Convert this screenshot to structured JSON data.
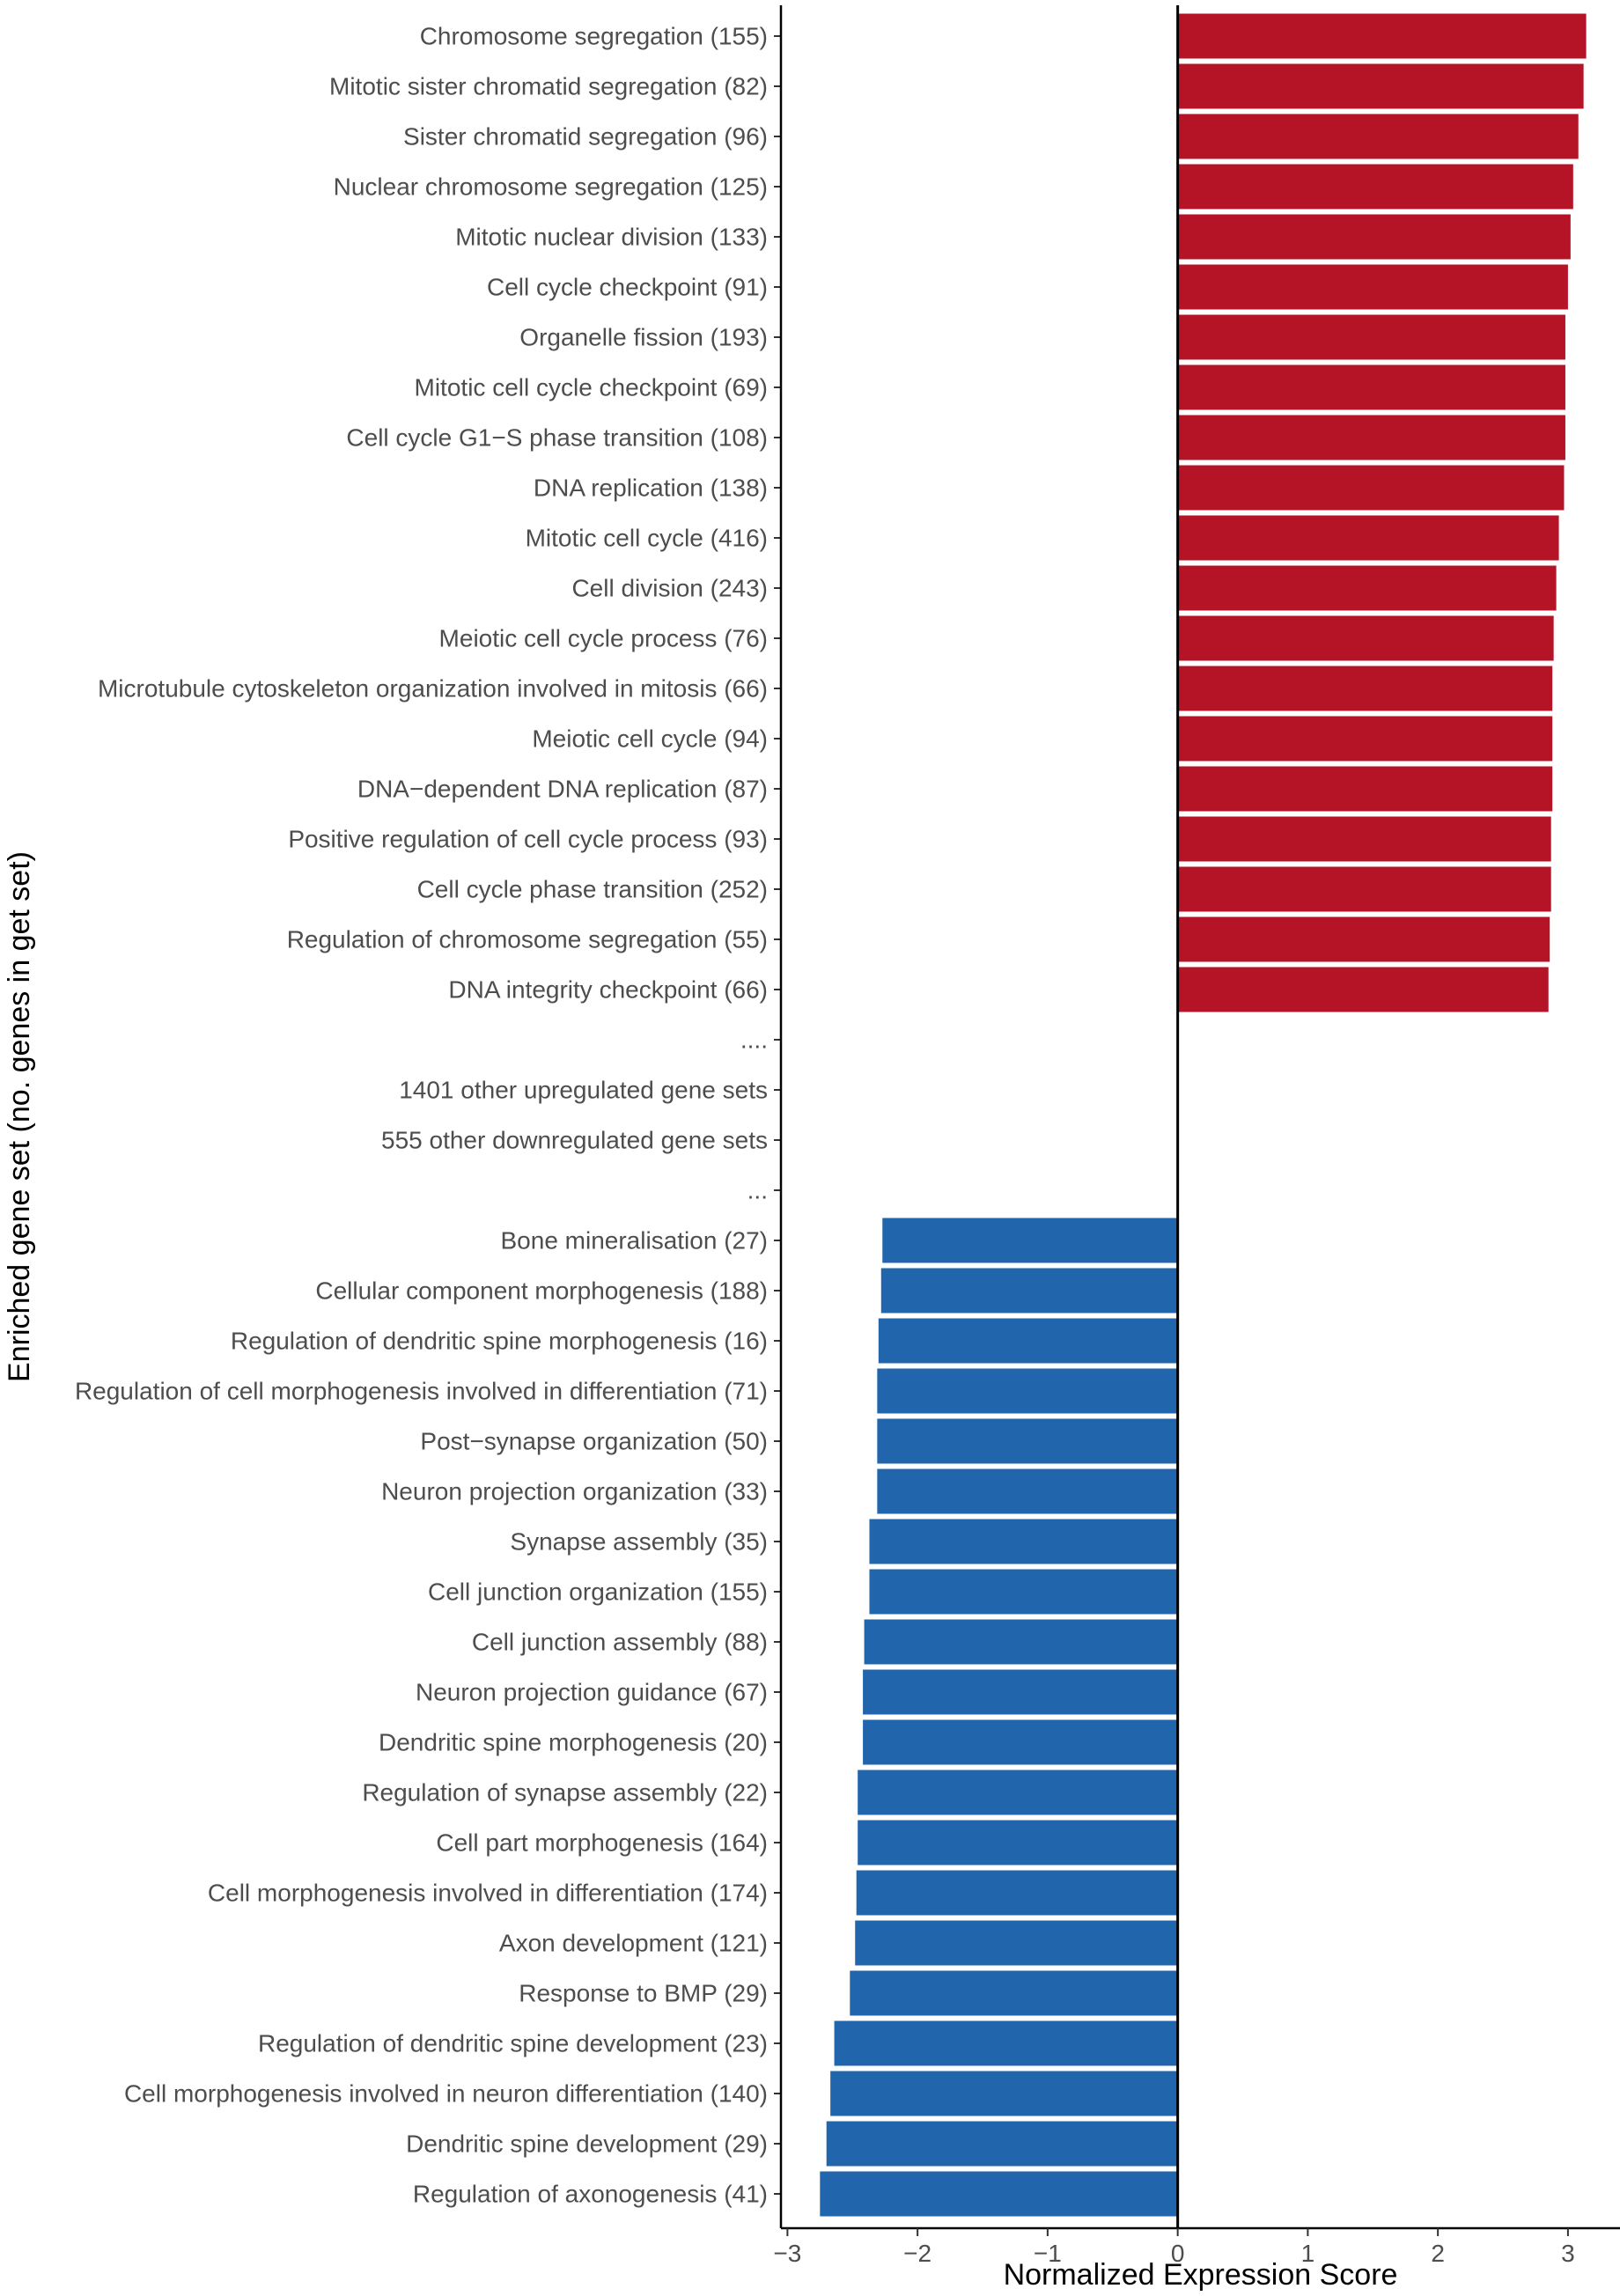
{
  "chart_data": {
    "type": "bar",
    "orientation": "horizontal",
    "xlabel": "Normalized Expression Score",
    "ylabel": "Enriched gene set (no. genes in get set)",
    "xlim": [
      -3.05,
      3.4
    ],
    "xticks": [
      -3,
      -2,
      -1,
      0,
      1,
      2,
      3
    ],
    "xtick_labels": [
      "−3",
      "−2",
      "−1",
      "0",
      "1",
      "2",
      "3"
    ],
    "colors": {
      "up": "#b51427",
      "down": "#2166ac"
    },
    "categories": [
      {
        "label": "Chromosome segregation (155)",
        "value": 3.14
      },
      {
        "label": "Mitotic sister chromatid segregation (82)",
        "value": 3.12
      },
      {
        "label": "Sister chromatid segregation (96)",
        "value": 3.08
      },
      {
        "label": "Nuclear chromosome segregation (125)",
        "value": 3.04
      },
      {
        "label": "Mitotic nuclear division (133)",
        "value": 3.02
      },
      {
        "label": "Cell cycle checkpoint (91)",
        "value": 3.0
      },
      {
        "label": "Organelle fission (193)",
        "value": 2.98
      },
      {
        "label": "Mitotic cell cycle checkpoint (69)",
        "value": 2.98
      },
      {
        "label": "Cell cycle G1−S phase transition (108)",
        "value": 2.98
      },
      {
        "label": "DNA replication (138)",
        "value": 2.97
      },
      {
        "label": "Mitotic cell cycle (416)",
        "value": 2.93
      },
      {
        "label": "Cell division (243)",
        "value": 2.91
      },
      {
        "label": "Meiotic cell cycle process (76)",
        "value": 2.89
      },
      {
        "label": "Microtubule cytoskeleton organization involved in mitosis (66)",
        "value": 2.88
      },
      {
        "label": "Meiotic cell cycle (94)",
        "value": 2.88
      },
      {
        "label": "DNA−dependent DNA replication (87)",
        "value": 2.88
      },
      {
        "label": "Positive regulation of cell cycle process (93)",
        "value": 2.87
      },
      {
        "label": "Cell cycle phase transition (252)",
        "value": 2.87
      },
      {
        "label": "Regulation of chromosome segregation (55)",
        "value": 2.86
      },
      {
        "label": "DNA integrity checkpoint (66)",
        "value": 2.85
      },
      {
        "label": "....",
        "value": null
      },
      {
        "label": "1401 other upregulated gene sets",
        "value": null
      },
      {
        "label": "555 other downregulated gene sets",
        "value": null
      },
      {
        "label": "...",
        "value": null
      },
      {
        "label": "Bone mineralisation (27)",
        "value": -2.27
      },
      {
        "label": "Cellular component morphogenesis (188)",
        "value": -2.28
      },
      {
        "label": "Regulation of dendritic spine morphogenesis (16)",
        "value": -2.3
      },
      {
        "label": "Regulation of cell morphogenesis involved in differentiation (71)",
        "value": -2.31
      },
      {
        "label": "Post−synapse organization (50)",
        "value": -2.31
      },
      {
        "label": "Neuron projection organization (33)",
        "value": -2.31
      },
      {
        "label": "Synapse assembly (35)",
        "value": -2.37
      },
      {
        "label": "Cell junction organization (155)",
        "value": -2.37
      },
      {
        "label": "Cell junction assembly (88)",
        "value": -2.41
      },
      {
        "label": "Neuron projection guidance (67)",
        "value": -2.42
      },
      {
        "label": "Dendritic spine morphogenesis (20)",
        "value": -2.42
      },
      {
        "label": "Regulation of synapse assembly (22)",
        "value": -2.46
      },
      {
        "label": "Cell part morphogenesis (164)",
        "value": -2.46
      },
      {
        "label": "Cell morphogenesis involved in differentiation (174)",
        "value": -2.47
      },
      {
        "label": "Axon development (121)",
        "value": -2.48
      },
      {
        "label": "Response to BMP (29)",
        "value": -2.52
      },
      {
        "label": "Regulation of dendritic spine development (23)",
        "value": -2.64
      },
      {
        "label": "Cell morphogenesis involved in neuron differentiation (140)",
        "value": -2.67
      },
      {
        "label": "Dendritic spine development (29)",
        "value": -2.7
      },
      {
        "label": "Regulation of axonogenesis (41)",
        "value": -2.75
      }
    ]
  }
}
